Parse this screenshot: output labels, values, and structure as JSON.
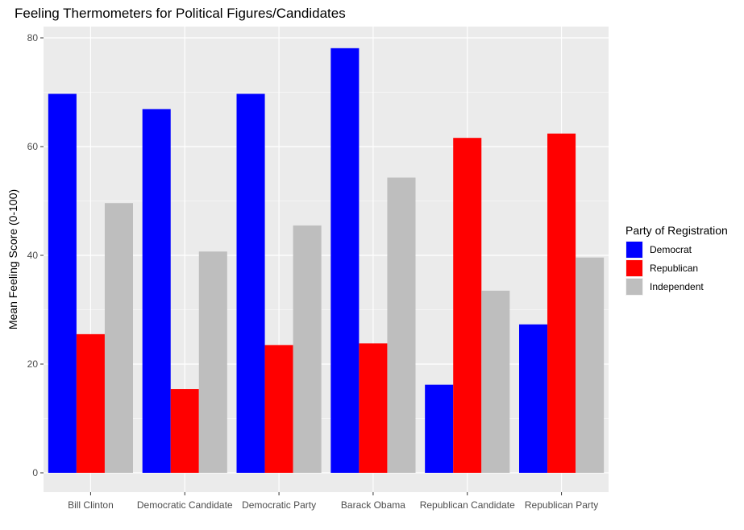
{
  "chart_data": {
    "type": "bar",
    "title": "Feeling Thermometers for Political Figures/Candidates",
    "xlabel": "",
    "ylabel": "Mean Feeling Score (0-100)",
    "ylim": [
      0,
      85
    ],
    "yticks": [
      0,
      20,
      40,
      60,
      80
    ],
    "grid": true,
    "legend_title": "Party of Registration",
    "legend_placement": "right",
    "categories": [
      "Bill Clinton",
      "Democratic Candidate",
      "Democratic Party",
      "Barack Obama",
      "Republican Candidate",
      "Republican Party"
    ],
    "series": [
      {
        "name": "Democrat",
        "color": "#0000ff",
        "values": [
          69.7,
          66.9,
          69.7,
          78.1,
          16.2,
          27.3
        ]
      },
      {
        "name": "Republican",
        "color": "#ff0000",
        "values": [
          25.5,
          15.4,
          23.5,
          23.8,
          61.6,
          62.4
        ]
      },
      {
        "name": "Independent",
        "color": "#bebebe",
        "values": [
          49.6,
          40.7,
          45.5,
          54.3,
          33.5,
          39.6
        ]
      }
    ]
  }
}
